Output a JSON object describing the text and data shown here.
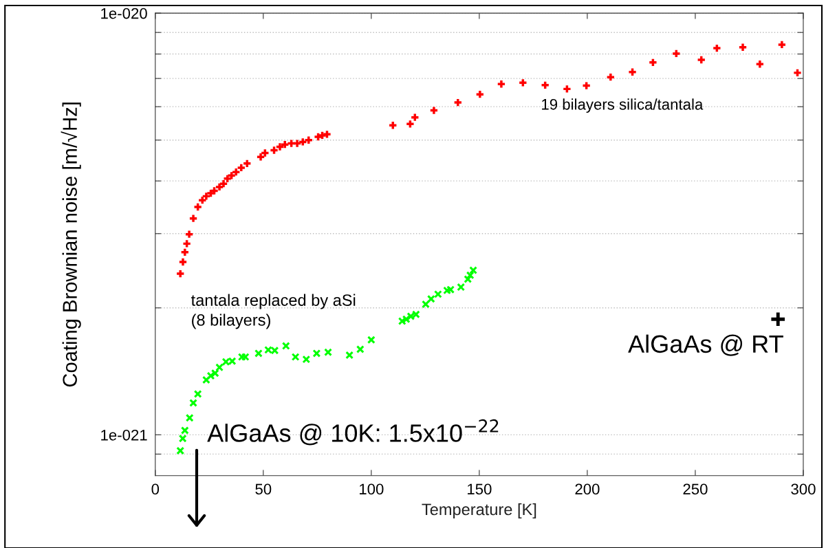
{
  "chart_data": {
    "type": "scatter",
    "xlabel": "Temperature [K]",
    "ylabel": "Coating Brownian noise [m/√Hz]",
    "log": "y",
    "grid": "y",
    "xlim": [
      0,
      300
    ],
    "xticks": [
      0,
      50,
      100,
      150,
      200,
      250,
      300
    ],
    "ylim": [
      8e-22,
      1e-20
    ],
    "yticks": [
      {
        "value": 9e-22,
        "label": null
      },
      {
        "value": 1e-21,
        "label": "1e-021"
      },
      {
        "value": 2e-21,
        "label": null
      },
      {
        "value": 3e-21,
        "label": null
      },
      {
        "value": 4e-21,
        "label": null
      },
      {
        "value": 5e-21,
        "label": null
      },
      {
        "value": 6e-21,
        "label": null
      },
      {
        "value": 7e-21,
        "label": null
      },
      {
        "value": 8e-21,
        "label": null
      },
      {
        "value": 9e-21,
        "label": null
      },
      {
        "value": 1e-20,
        "label": "1e-020"
      }
    ],
    "series": [
      {
        "name": "19 bilayers silica/tantala",
        "color": "#ff0000",
        "x": [
          11.6,
          12.8,
          13.7,
          14.6,
          15.7,
          17.6,
          19.7,
          21.8,
          23.6,
          25.7,
          27.3,
          29.7,
          31.6,
          33.4,
          35.3,
          37.4,
          39.8,
          42.5,
          48.8,
          50.8,
          55.0,
          57.7,
          60.0,
          63.0,
          65.7,
          68.3,
          71.0,
          75.4,
          77.3,
          79.5,
          110.0,
          118.0,
          120.2,
          129.0,
          140.1,
          150.3,
          160.2,
          170.2,
          180.5,
          190.6,
          199.6,
          210.8,
          220.9,
          230.4,
          241.2,
          252.8,
          260.0,
          272.0,
          279.9,
          290.1,
          297.3
        ],
        "values": [
          2.41e-21,
          2.57e-21,
          2.71e-21,
          2.84e-21,
          2.99e-21,
          3.26e-21,
          3.47e-21,
          3.6e-21,
          3.68e-21,
          3.74e-21,
          3.79e-21,
          3.87e-21,
          3.94e-21,
          4.05e-21,
          4.12e-21,
          4.2e-21,
          4.3e-21,
          4.4e-21,
          4.56e-21,
          4.66e-21,
          4.73e-21,
          4.82e-21,
          4.88e-21,
          4.91e-21,
          4.91e-21,
          4.95e-21,
          5e-21,
          5.09e-21,
          5.13e-21,
          5.16e-21,
          5.42e-21,
          5.46e-21,
          5.66e-21,
          5.88e-21,
          6.14e-21,
          6.42e-21,
          6.79e-21,
          6.84e-21,
          6.75e-21,
          6.61e-21,
          6.73e-21,
          7.05e-21,
          7.25e-21,
          7.64e-21,
          8.02e-21,
          7.75e-21,
          8.26e-21,
          8.3e-21,
          7.57e-21,
          8.42e-21,
          7.22e-21
        ]
      },
      {
        "name": "tantala replaced by aSi\n(8 bilayers)",
        "color": "#00ff00",
        "marker": "cross",
        "x": [
          11.6,
          12.7,
          13.7,
          15.9,
          17.6,
          19.7,
          23.6,
          25.7,
          27.7,
          29.7,
          32.7,
          35.6,
          40.1,
          41.7,
          47.8,
          52.3,
          55.3,
          60.5,
          64.9,
          69.9,
          74.7,
          80.0,
          89.9,
          94.9,
          100.0,
          114.3,
          116.2,
          118.3,
          120.7,
          125.2,
          127.7,
          130.9,
          135.1,
          136.7,
          141.5,
          144.7,
          145.8,
          147.2
        ],
        "values": [
          9.17e-22,
          9.8e-22,
          1.024e-21,
          1.097e-21,
          1.19e-21,
          1.25e-21,
          1.35e-21,
          1.38e-21,
          1.4e-21,
          1.445e-21,
          1.49e-21,
          1.495e-21,
          1.53e-21,
          1.53e-21,
          1.56e-21,
          1.59e-21,
          1.585e-21,
          1.625e-21,
          1.53e-21,
          1.51e-21,
          1.56e-21,
          1.57e-21,
          1.545e-21,
          1.595e-21,
          1.68e-21,
          1.86e-21,
          1.88e-21,
          1.91e-21,
          1.93e-21,
          2.04e-21,
          2.1e-21,
          2.155e-21,
          2.2e-21,
          2.21e-21,
          2.24e-21,
          2.34e-21,
          2.39e-21,
          2.456e-21
        ]
      },
      {
        "name": "AlGaAs @ RT",
        "color": "#000000",
        "x": [
          288.3
        ],
        "values": [
          1.88e-21
        ]
      }
    ],
    "annotations": [
      "AlGaAs @ 10K: 1.5x10$^{−22}$"
    ]
  }
}
